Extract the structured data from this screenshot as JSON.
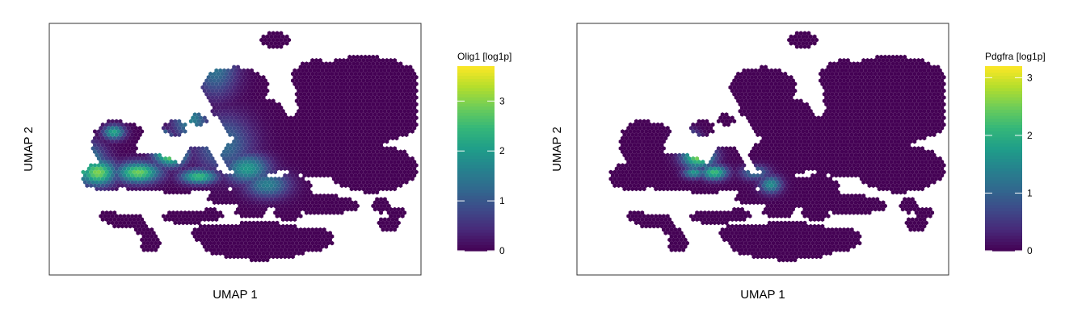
{
  "chart_data": [
    {
      "type": "heatmap",
      "subtype": "umap-hexbin",
      "title": "",
      "xlabel": "UMAP 1",
      "ylabel": "UMAP 2",
      "colorbar": {
        "title": "Olig1 [log1p]",
        "range": [
          0,
          3.7
        ],
        "ticks": [
          0,
          1,
          2,
          3
        ],
        "tick_labels": [
          "0",
          "1",
          "2",
          "3"
        ],
        "colormap": "viridis"
      },
      "gene": "olig1"
    },
    {
      "type": "heatmap",
      "subtype": "umap-hexbin",
      "title": "",
      "xlabel": "UMAP 1",
      "ylabel": "UMAP 2",
      "colorbar": {
        "title": "Pdgfra [log1p]",
        "range": [
          0,
          3.2
        ],
        "ticks": [
          0,
          1,
          2,
          3
        ],
        "tick_labels": [
          "0",
          "1",
          "2",
          "3"
        ],
        "colormap": "viridis"
      },
      "gene": "pdgfra"
    }
  ],
  "colors": {
    "low": "#440154",
    "high": "#fde725",
    "frame": "#333333"
  }
}
